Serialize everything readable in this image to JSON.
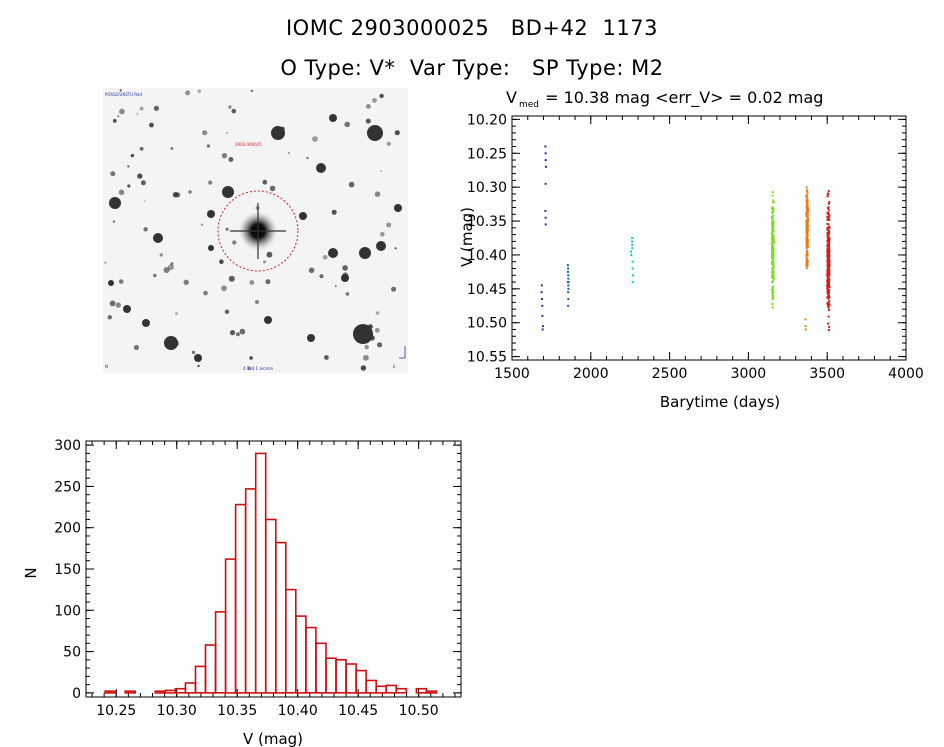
{
  "header": {
    "line1": "IOMC 2903000025   BD+42  1173",
    "line2": "O Type: V*  Var Type:   SP Type: M2"
  },
  "stamp": {
    "top_left_label": "POSS2/UKSTU Red",
    "target_label": "2903.000025",
    "bottom_label": "4.1x4.1 arcmin",
    "bottom_left_label": "N",
    "bottom_right_label": "E"
  },
  "chart_data": [
    {
      "type": "scatter",
      "title_prefix": "V",
      "title_subscript": "med",
      "title_rest": " = 10.38 mag <err_V> = 0.02 mag",
      "xlabel": "Barytime (days)",
      "ylabel": "V (mag)",
      "xlim": [
        1500,
        4000
      ],
      "ylim": [
        10.555,
        10.195
      ],
      "xticks": [
        1500,
        2000,
        2500,
        3000,
        3500,
        4000
      ],
      "yticks": [
        10.2,
        10.25,
        10.3,
        10.35,
        10.4,
        10.45,
        10.5,
        10.55
      ],
      "series": [
        {
          "name": "season1",
          "color": "#5a1a9a",
          "x_range": [
            1685,
            1720
          ],
          "points": [
            [
              1690,
              10.445
            ],
            [
              1690,
              10.465
            ],
            [
              1692,
              10.475
            ],
            [
              1693,
              10.49
            ],
            [
              1695,
              10.51
            ],
            [
              1696,
              10.505
            ],
            [
              1688,
              10.455
            ],
            [
              1712,
              10.24
            ],
            [
              1713,
              10.25
            ],
            [
              1714,
              10.26
            ],
            [
              1715,
              10.27
            ],
            [
              1713,
              10.295
            ],
            [
              1712,
              10.335
            ],
            [
              1713,
              10.345
            ],
            [
              1714,
              10.355
            ]
          ]
        },
        {
          "name": "season2",
          "color": "#1a5fc0",
          "x_range": [
            1850,
            1870
          ],
          "points": [
            [
              1855,
              10.415
            ],
            [
              1856,
              10.42
            ],
            [
              1857,
              10.43
            ],
            [
              1858,
              10.435
            ],
            [
              1855,
              10.44
            ],
            [
              1857,
              10.445
            ],
            [
              1858,
              10.45
            ],
            [
              1856,
              10.455
            ],
            [
              1857,
              10.465
            ],
            [
              1855,
              10.425
            ],
            [
              1859,
              10.44
            ],
            [
              1856,
              10.475
            ]
          ]
        },
        {
          "name": "season3",
          "color": "#18c4c4",
          "x_range": [
            2250,
            2280
          ],
          "points": [
            [
              2255,
              10.395
            ],
            [
              2257,
              10.4
            ],
            [
              2262,
              10.375
            ],
            [
              2263,
              10.385
            ],
            [
              2264,
              10.39
            ],
            [
              2265,
              10.41
            ],
            [
              2266,
              10.42
            ],
            [
              2267,
              10.43
            ],
            [
              2266,
              10.44
            ],
            [
              2263,
              10.38
            ]
          ]
        },
        {
          "name": "season4",
          "color": "#7ee01a",
          "x_range": [
            3140,
            3170
          ],
          "y_range": [
            10.305,
            10.48
          ],
          "n": 140
        },
        {
          "name": "season5",
          "color": "#f07a10",
          "x_range": [
            3360,
            3385
          ],
          "y_range": [
            10.29,
            10.425
          ],
          "n": 140,
          "extra": [
            [
              3362,
              10.495
            ],
            [
              3363,
              10.505
            ],
            [
              3364,
              10.51
            ]
          ]
        },
        {
          "name": "season6",
          "color": "#dd1a1a",
          "x_range": [
            3490,
            3525
          ],
          "y_range": [
            10.305,
            10.515
          ],
          "n": 240
        }
      ]
    },
    {
      "type": "bar",
      "xlabel": "V (mag)",
      "ylabel": "N",
      "xlim": [
        10.225,
        10.535
      ],
      "ylim": [
        -5,
        305
      ],
      "xticks": [
        10.25,
        10.3,
        10.35,
        10.4,
        10.45,
        10.5
      ],
      "yticks": [
        0,
        50,
        100,
        150,
        200,
        250,
        300
      ],
      "bin_width": 0.0083,
      "bin_start": 10.2325,
      "values": [
        0,
        2,
        0,
        2,
        0,
        0,
        2,
        3,
        5,
        12,
        32,
        58,
        98,
        162,
        228,
        247,
        290,
        210,
        182,
        125,
        93,
        79,
        60,
        42,
        40,
        35,
        27,
        15,
        8,
        9,
        5,
        0,
        5,
        2,
        0
      ]
    }
  ]
}
